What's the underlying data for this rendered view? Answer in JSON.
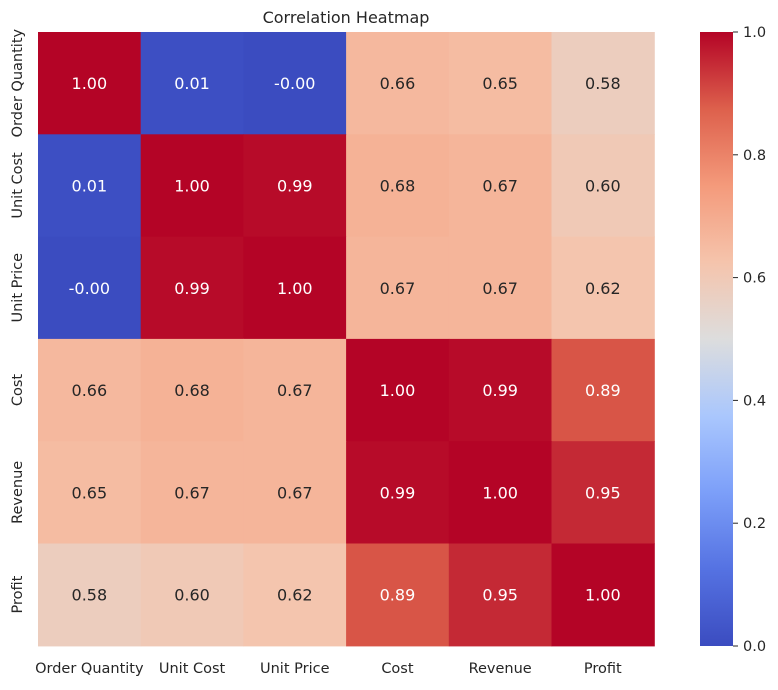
{
  "chart_data": {
    "type": "heatmap",
    "title": "Correlation Heatmap",
    "xlabel": "",
    "ylabel": "",
    "x_categories": [
      "Order Quantity",
      "Unit Cost",
      "Unit Price",
      "Cost",
      "Revenue",
      "Profit"
    ],
    "y_categories": [
      "Order Quantity",
      "Unit Cost",
      "Unit Price",
      "Cost",
      "Revenue",
      "Profit"
    ],
    "values": [
      [
        1.0,
        0.01,
        -0.0,
        0.66,
        0.65,
        0.58
      ],
      [
        0.01,
        1.0,
        0.99,
        0.68,
        0.67,
        0.6
      ],
      [
        -0.0,
        0.99,
        1.0,
        0.67,
        0.67,
        0.62
      ],
      [
        0.66,
        0.68,
        0.67,
        1.0,
        0.99,
        0.89
      ],
      [
        0.65,
        0.67,
        0.67,
        0.99,
        1.0,
        0.95
      ],
      [
        0.58,
        0.6,
        0.62,
        0.89,
        0.95,
        1.0
      ]
    ],
    "value_labels": [
      [
        "1.00",
        "0.01",
        "-0.00",
        "0.66",
        "0.65",
        "0.58"
      ],
      [
        "0.01",
        "1.00",
        "0.99",
        "0.68",
        "0.67",
        "0.60"
      ],
      [
        "-0.00",
        "0.99",
        "1.00",
        "0.67",
        "0.67",
        "0.62"
      ],
      [
        "0.66",
        "0.68",
        "0.67",
        "1.00",
        "0.99",
        "0.89"
      ],
      [
        "0.65",
        "0.67",
        "0.67",
        "0.99",
        "1.00",
        "0.95"
      ],
      [
        "0.58",
        "0.60",
        "0.62",
        "0.89",
        "0.95",
        "1.00"
      ]
    ],
    "colormap": "coolwarm",
    "color_range": [
      0.0,
      1.0
    ],
    "colorbar_ticks": [
      "0.0",
      "0.2",
      "0.4",
      "0.6",
      "0.8",
      "1.0"
    ],
    "colorbar_tick_values": [
      0.0,
      0.2,
      0.4,
      0.6,
      0.8,
      1.0
    ],
    "grid": false
  }
}
